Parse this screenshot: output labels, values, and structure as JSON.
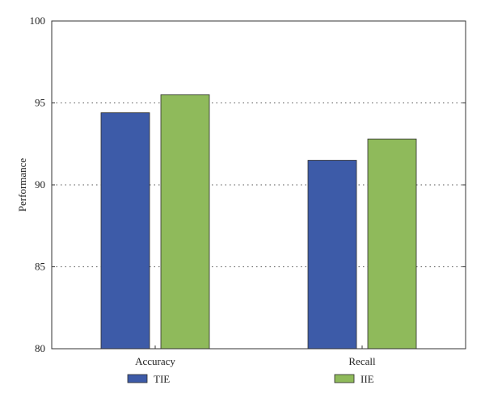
{
  "chart_data": {
    "type": "bar",
    "categories": [
      "Accuracy",
      "Recall"
    ],
    "series": [
      {
        "name": "TIE",
        "values": [
          94.4,
          91.5
        ],
        "color": "#3d5ba8"
      },
      {
        "name": "IIE",
        "values": [
          95.5,
          92.8
        ],
        "color": "#8fba5b"
      }
    ],
    "ylabel": "Performance",
    "xlabel": "",
    "ylim": [
      80,
      100
    ],
    "yticks": [
      80,
      85,
      90,
      95,
      100
    ],
    "grid": "horizontal-dotted",
    "legend_position": "bottom"
  }
}
